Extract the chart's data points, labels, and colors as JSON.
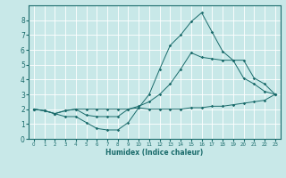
{
  "xlabel": "Humidex (Indice chaleur)",
  "ylabel": "",
  "bg_color": "#c8e8e8",
  "grid_color": "#ffffff",
  "line_color": "#1a6b6b",
  "xlim": [
    -0.5,
    23.5
  ],
  "ylim": [
    0,
    9
  ],
  "xticks": [
    0,
    1,
    2,
    3,
    4,
    5,
    6,
    7,
    8,
    9,
    10,
    11,
    12,
    13,
    14,
    15,
    16,
    17,
    18,
    19,
    20,
    21,
    22,
    23
  ],
  "yticks": [
    0,
    1,
    2,
    3,
    4,
    5,
    6,
    7,
    8
  ],
  "line1_x": [
    0,
    1,
    2,
    3,
    4,
    5,
    6,
    7,
    8,
    9,
    10,
    11,
    12,
    13,
    14,
    15,
    16,
    17,
    18,
    19,
    20,
    21,
    22,
    23
  ],
  "line1_y": [
    2.0,
    1.9,
    1.7,
    1.5,
    1.5,
    1.1,
    0.7,
    0.6,
    0.6,
    1.1,
    2.1,
    2.0,
    2.0,
    2.0,
    2.0,
    2.1,
    2.1,
    2.2,
    2.2,
    2.3,
    2.4,
    2.5,
    2.6,
    3.0
  ],
  "line2_x": [
    0,
    1,
    2,
    3,
    4,
    5,
    6,
    7,
    8,
    9,
    10,
    11,
    12,
    13,
    14,
    15,
    16,
    17,
    18,
    19,
    20,
    21,
    22,
    23
  ],
  "line2_y": [
    2.0,
    1.9,
    1.7,
    1.9,
    2.0,
    2.0,
    2.0,
    2.0,
    2.0,
    2.0,
    2.1,
    3.0,
    4.7,
    6.3,
    7.0,
    7.9,
    8.5,
    7.2,
    5.9,
    5.3,
    4.1,
    3.7,
    3.2,
    3.0
  ],
  "line3_x": [
    0,
    1,
    2,
    3,
    4,
    5,
    6,
    7,
    8,
    9,
    10,
    11,
    12,
    13,
    14,
    15,
    16,
    17,
    18,
    19,
    20,
    21,
    22,
    23
  ],
  "line3_y": [
    2.0,
    1.9,
    1.7,
    1.9,
    2.0,
    1.6,
    1.5,
    1.5,
    1.5,
    2.0,
    2.2,
    2.5,
    3.0,
    3.7,
    4.7,
    5.8,
    5.5,
    5.4,
    5.3,
    5.3,
    5.3,
    4.1,
    3.7,
    3.0
  ]
}
